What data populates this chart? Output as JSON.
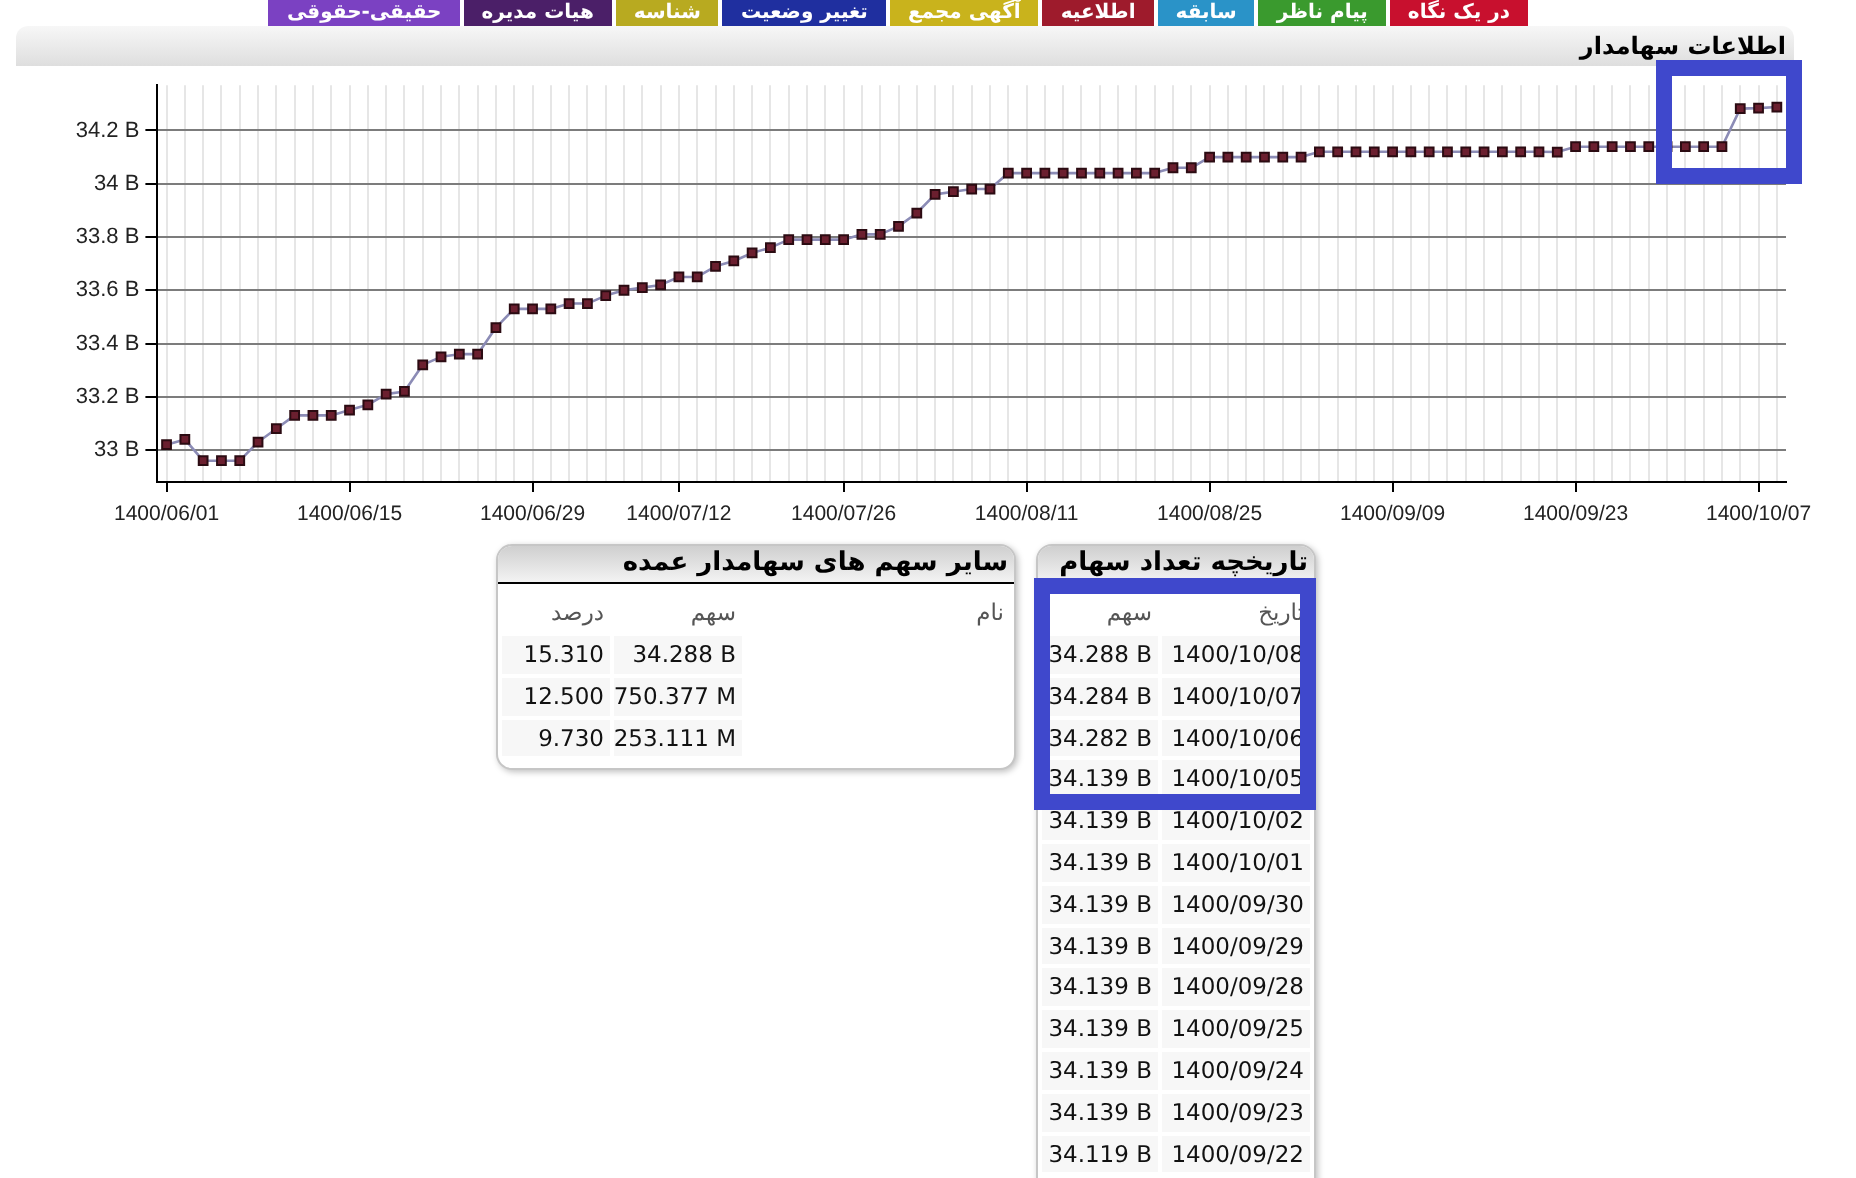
{
  "chart_data": [
    {
      "type": "other",
      "annotations": [
        "در یک نگاه",
        "پیام ناظر",
        "سابقه",
        "اطلاعیه",
        "آگهی مجمع",
        "تغییر وضعیت",
        "شناسه",
        "هیات مدیره",
        "حقیقی-حقوقی"
      ],
      "colors": [
        "#c8102e",
        "#3a9a2e",
        "#2a93c8",
        "#9e1b2c",
        "#c9b31c",
        "#1f2f9f",
        "#b8aa20",
        "#4b1f68",
        "#7b41c2"
      ]
    },
    {
      "type": "line",
      "title": "اطلاعات سهامدار",
      "categories": [
        "1400/06/01",
        null,
        null,
        null,
        null,
        null,
        null,
        null,
        null,
        null,
        "1400/06/15",
        null,
        null,
        null,
        null,
        null,
        null,
        null,
        null,
        null,
        "1400/06/29",
        null,
        null,
        null,
        null,
        null,
        null,
        null,
        "1400/07/12",
        null,
        null,
        null,
        null,
        null,
        null,
        null,
        null,
        "1400/07/26",
        null,
        null,
        null,
        null,
        null,
        null,
        null,
        null,
        null,
        "1400/08/11",
        null,
        null,
        null,
        null,
        null,
        null,
        null,
        null,
        null,
        "1400/08/25",
        null,
        null,
        null,
        null,
        null,
        null,
        null,
        null,
        null,
        "1400/09/09",
        null,
        null,
        null,
        null,
        null,
        null,
        null,
        null,
        null,
        "1400/09/23",
        null,
        null,
        null,
        null,
        null,
        null,
        null,
        null,
        null,
        "1400/10/07",
        null
      ],
      "values": [
        33.02,
        33.04,
        32.96,
        32.96,
        32.96,
        33.03,
        33.08,
        33.13,
        33.13,
        33.13,
        33.15,
        33.17,
        33.21,
        33.22,
        33.32,
        33.35,
        33.36,
        33.36,
        33.46,
        33.53,
        33.53,
        33.53,
        33.55,
        33.55,
        33.58,
        33.6,
        33.61,
        33.62,
        33.65,
        33.65,
        33.69,
        33.71,
        33.74,
        33.76,
        33.79,
        33.79,
        33.79,
        33.79,
        33.81,
        33.81,
        33.84,
        33.89,
        33.96,
        33.97,
        33.98,
        33.98,
        34.04,
        34.04,
        34.04,
        34.04,
        34.04,
        34.04,
        34.04,
        34.04,
        34.04,
        34.06,
        34.06,
        34.1,
        34.1,
        34.1,
        34.1,
        34.1,
        34.1,
        34.12,
        34.12,
        34.12,
        34.12,
        34.12,
        34.12,
        34.12,
        34.12,
        34.12,
        34.12,
        34.12,
        34.12,
        34.12,
        34.119,
        34.139,
        34.139,
        34.139,
        34.139,
        34.139,
        34.139,
        34.139,
        34.139,
        34.139,
        34.282,
        34.284,
        34.288
      ],
      "color": "#6b1f2f",
      "marker": "square",
      "grid": true,
      "ylim": [
        32.88,
        34.37
      ],
      "yticks": [
        {
          "value": 33,
          "label": "33 B"
        },
        {
          "value": 33.2,
          "label": "33.2 B"
        },
        {
          "value": 33.4,
          "label": "33.4 B"
        },
        {
          "value": 33.6,
          "label": "33.6 B"
        },
        {
          "value": 33.8,
          "label": "33.8 B"
        },
        {
          "value": 34,
          "label": "34 B"
        },
        {
          "value": 34.2,
          "label": "34.2 B"
        }
      ]
    },
    {
      "type": "other",
      "title": "تاریخچه تعداد سهام",
      "xlabel": "تاریخ",
      "categories": [
        "1400/10/08",
        "1400/10/07",
        "1400/10/06",
        "1400/10/05",
        "1400/10/02",
        "1400/10/01",
        "1400/09/30",
        "1400/09/29",
        "1400/09/28",
        "1400/09/25",
        "1400/09/24",
        "1400/09/23",
        "1400/09/22"
      ],
      "series": [
        {
          "name": "سهم",
          "values": [
            34.288,
            34.284,
            34.282,
            34.139,
            34.139,
            34.139,
            34.139,
            34.139,
            34.139,
            34.139,
            34.139,
            34.139,
            34.119
          ],
          "value_labels": [
            "34.288 B",
            "34.284 B",
            "34.282 B",
            "34.139 B",
            "34.139 B",
            "34.139 B",
            "34.139 B",
            "34.139 B",
            "34.139 B",
            "34.139 B",
            "34.139 B",
            "34.139 B",
            "34.119 B"
          ]
        }
      ]
    },
    {
      "type": "other",
      "title": "سایر سهم های سهامدار عمده",
      "xlabel": "نام",
      "categories": [
        "درصد",
        "سهم"
      ],
      "series": [
        {
          "values": [
            15.31,
            34.288
          ],
          "value_labels": [
            "15.310",
            "34.288 B"
          ]
        },
        {
          "values": [
            12.5,
            750.377
          ],
          "value_labels": [
            "12.500",
            "750.377 M"
          ]
        },
        {
          "values": [
            9.73,
            253.111
          ],
          "value_labels": [
            "9.730",
            "253.111 M"
          ]
        }
      ]
    }
  ]
}
